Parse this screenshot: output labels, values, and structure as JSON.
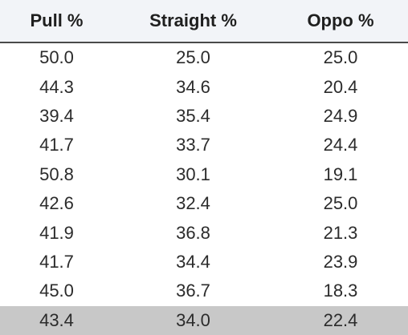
{
  "table": {
    "columns": [
      "Pull %",
      "Straight %",
      "Oppo %"
    ],
    "rows": [
      [
        "50.0",
        "25.0",
        "25.0"
      ],
      [
        "44.3",
        "34.6",
        "20.4"
      ],
      [
        "39.4",
        "35.4",
        "24.9"
      ],
      [
        "41.7",
        "33.7",
        "24.4"
      ],
      [
        "50.8",
        "30.1",
        "19.1"
      ],
      [
        "42.6",
        "32.4",
        "25.0"
      ],
      [
        "41.9",
        "36.8",
        "21.3"
      ],
      [
        "41.7",
        "34.4",
        "23.9"
      ],
      [
        "45.0",
        "36.7",
        "18.3"
      ],
      [
        "43.4",
        "34.0",
        "22.4"
      ]
    ]
  },
  "colors": {
    "header_bg": "#f2f4f8",
    "highlight_row_bg": "#c8c8c8",
    "text": "#2b2b2b"
  }
}
